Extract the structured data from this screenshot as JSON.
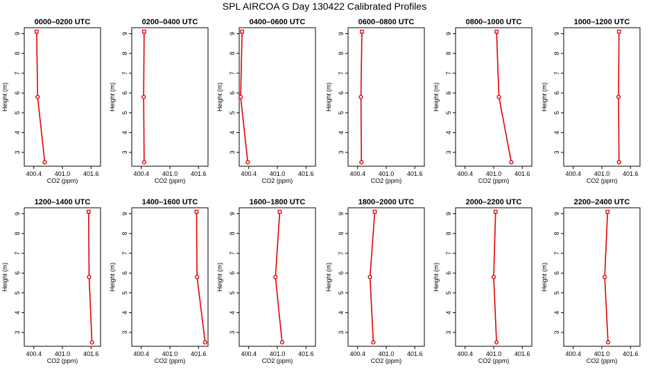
{
  "figure": {
    "title": "SPL AIRCOA G  Day 130422  Calibrated Profiles",
    "line_color": "#e00000",
    "frame_color": "#000000"
  },
  "chart_data": [
    {
      "type": "line",
      "title": "0000–0200 UTC",
      "xlabel": "CO2 (ppm)",
      "ylabel": "Height (m)",
      "xlim": [
        400.2,
        401.8
      ],
      "ylim": [
        2.3,
        9.3
      ],
      "xticks": [
        "400.4",
        "401.0",
        "401.6"
      ],
      "yticks": [
        "3",
        "4",
        "5",
        "6",
        "7",
        "8",
        "9"
      ],
      "series": [
        {
          "x": [
            400.63,
            400.48,
            400.46
          ],
          "y": [
            2.5,
            5.8,
            9.1
          ]
        }
      ]
    },
    {
      "type": "line",
      "title": "0200–0400 UTC",
      "xlabel": "CO2 (ppm)",
      "ylabel": "Height (m)",
      "xlim": [
        400.2,
        401.8
      ],
      "ylim": [
        2.3,
        9.3
      ],
      "xticks": [
        "400.4",
        "401.0",
        "401.6"
      ],
      "yticks": [
        "3",
        "4",
        "5",
        "6",
        "7",
        "8",
        "9"
      ],
      "series": [
        {
          "x": [
            400.46,
            400.45,
            400.46
          ],
          "y": [
            2.5,
            5.8,
            9.1
          ]
        }
      ]
    },
    {
      "type": "line",
      "title": "0400–0600 UTC",
      "xlabel": "CO2 (ppm)",
      "ylabel": "Height (m)",
      "xlim": [
        400.2,
        401.8
      ],
      "ylim": [
        2.3,
        9.3
      ],
      "xticks": [
        "400.4",
        "401.0",
        "401.6"
      ],
      "yticks": [
        "3",
        "4",
        "5",
        "6",
        "7",
        "8",
        "9"
      ],
      "series": [
        {
          "x": [
            400.38,
            400.23,
            400.26
          ],
          "y": [
            2.5,
            5.8,
            9.1
          ]
        }
      ]
    },
    {
      "type": "line",
      "title": "0600–0800 UTC",
      "xlabel": "CO2 (ppm)",
      "ylabel": "Height (m)",
      "xlim": [
        400.2,
        401.8
      ],
      "ylim": [
        2.3,
        9.3
      ],
      "xticks": [
        "400.4",
        "401.0",
        "401.6"
      ],
      "yticks": [
        "3",
        "4",
        "5",
        "6",
        "7",
        "8",
        "9"
      ],
      "series": [
        {
          "x": [
            400.48,
            400.47,
            400.49
          ],
          "y": [
            2.5,
            5.8,
            9.1
          ]
        }
      ]
    },
    {
      "type": "line",
      "title": "0800–1000 UTC",
      "xlabel": "CO2 (ppm)",
      "ylabel": "Height (m)",
      "xlim": [
        400.2,
        401.8
      ],
      "ylim": [
        2.3,
        9.3
      ],
      "xticks": [
        "400.4",
        "401.0",
        "401.6"
      ],
      "yticks": [
        "3",
        "4",
        "5",
        "6",
        "7",
        "8",
        "9"
      ],
      "series": [
        {
          "x": [
            401.37,
            401.11,
            401.06
          ],
          "y": [
            2.5,
            5.8,
            9.1
          ]
        }
      ]
    },
    {
      "type": "line",
      "title": "1000–1200 UTC",
      "xlabel": "CO2 (ppm)",
      "ylabel": "Height (m)",
      "xlim": [
        400.2,
        401.8
      ],
      "ylim": [
        2.3,
        9.3
      ],
      "xticks": [
        "400.4",
        "401.0",
        "401.6"
      ],
      "yticks": [
        "3",
        "4",
        "5",
        "6",
        "7",
        "8",
        "9"
      ],
      "series": [
        {
          "x": [
            401.36,
            401.35,
            401.36
          ],
          "y": [
            2.5,
            5.8,
            9.1
          ]
        }
      ]
    },
    {
      "type": "line",
      "title": "1200–1400 UTC",
      "xlabel": "CO2 (ppm)",
      "ylabel": "Height (m)",
      "xlim": [
        400.2,
        401.8
      ],
      "ylim": [
        2.3,
        9.3
      ],
      "xticks": [
        "400.4",
        "401.0",
        "401.6"
      ],
      "yticks": [
        "3",
        "4",
        "5",
        "6",
        "7",
        "8",
        "9"
      ],
      "series": [
        {
          "x": [
            401.62,
            401.56,
            401.55
          ],
          "y": [
            2.5,
            5.8,
            9.1
          ]
        }
      ]
    },
    {
      "type": "line",
      "title": "1400–1600 UTC",
      "xlabel": "CO2 (ppm)",
      "ylabel": "Height (m)",
      "xlim": [
        400.2,
        401.8
      ],
      "ylim": [
        2.3,
        9.3
      ],
      "xticks": [
        "400.4",
        "401.0",
        "401.6"
      ],
      "yticks": [
        "3",
        "4",
        "5",
        "6",
        "7",
        "8",
        "9"
      ],
      "series": [
        {
          "x": [
            401.74,
            401.57,
            401.56
          ],
          "y": [
            2.5,
            5.8,
            9.1
          ]
        }
      ]
    },
    {
      "type": "line",
      "title": "1600–1800 UTC",
      "xlabel": "CO2 (ppm)",
      "ylabel": "Height (m)",
      "xlim": [
        400.2,
        401.8
      ],
      "ylim": [
        2.3,
        9.3
      ],
      "xticks": [
        "400.4",
        "401.0",
        "401.6"
      ],
      "yticks": [
        "3",
        "4",
        "5",
        "6",
        "7",
        "8",
        "9"
      ],
      "series": [
        {
          "x": [
            401.1,
            400.96,
            401.05
          ],
          "y": [
            2.5,
            5.8,
            9.1
          ]
        }
      ]
    },
    {
      "type": "line",
      "title": "1800–2000 UTC",
      "xlabel": "CO2 (ppm)",
      "ylabel": "Height (m)",
      "xlim": [
        400.2,
        401.8
      ],
      "ylim": [
        2.3,
        9.3
      ],
      "xticks": [
        "400.4",
        "401.0",
        "401.6"
      ],
      "yticks": [
        "3",
        "4",
        "5",
        "6",
        "7",
        "8",
        "9"
      ],
      "series": [
        {
          "x": [
            400.73,
            400.66,
            400.76
          ],
          "y": [
            2.5,
            5.8,
            9.1
          ]
        }
      ]
    },
    {
      "type": "line",
      "title": "2000–2200 UTC",
      "xlabel": "CO2 (ppm)",
      "ylabel": "Height (m)",
      "xlim": [
        400.2,
        401.8
      ],
      "ylim": [
        2.3,
        9.3
      ],
      "xticks": [
        "400.4",
        "401.0",
        "401.6"
      ],
      "yticks": [
        "3",
        "4",
        "5",
        "6",
        "7",
        "8",
        "9"
      ],
      "series": [
        {
          "x": [
            401.06,
            401.0,
            401.04
          ],
          "y": [
            2.5,
            5.8,
            9.1
          ]
        }
      ]
    },
    {
      "type": "line",
      "title": "2200–2400 UTC",
      "xlabel": "CO2 (ppm)",
      "ylabel": "Height (m)",
      "xlim": [
        400.2,
        401.8
      ],
      "ylim": [
        2.3,
        9.3
      ],
      "xticks": [
        "400.4",
        "401.0",
        "401.6"
      ],
      "yticks": [
        "3",
        "4",
        "5",
        "6",
        "7",
        "8",
        "9"
      ],
      "series": [
        {
          "x": [
            401.13,
            401.06,
            401.12
          ],
          "y": [
            2.5,
            5.8,
            9.1
          ]
        }
      ]
    }
  ]
}
